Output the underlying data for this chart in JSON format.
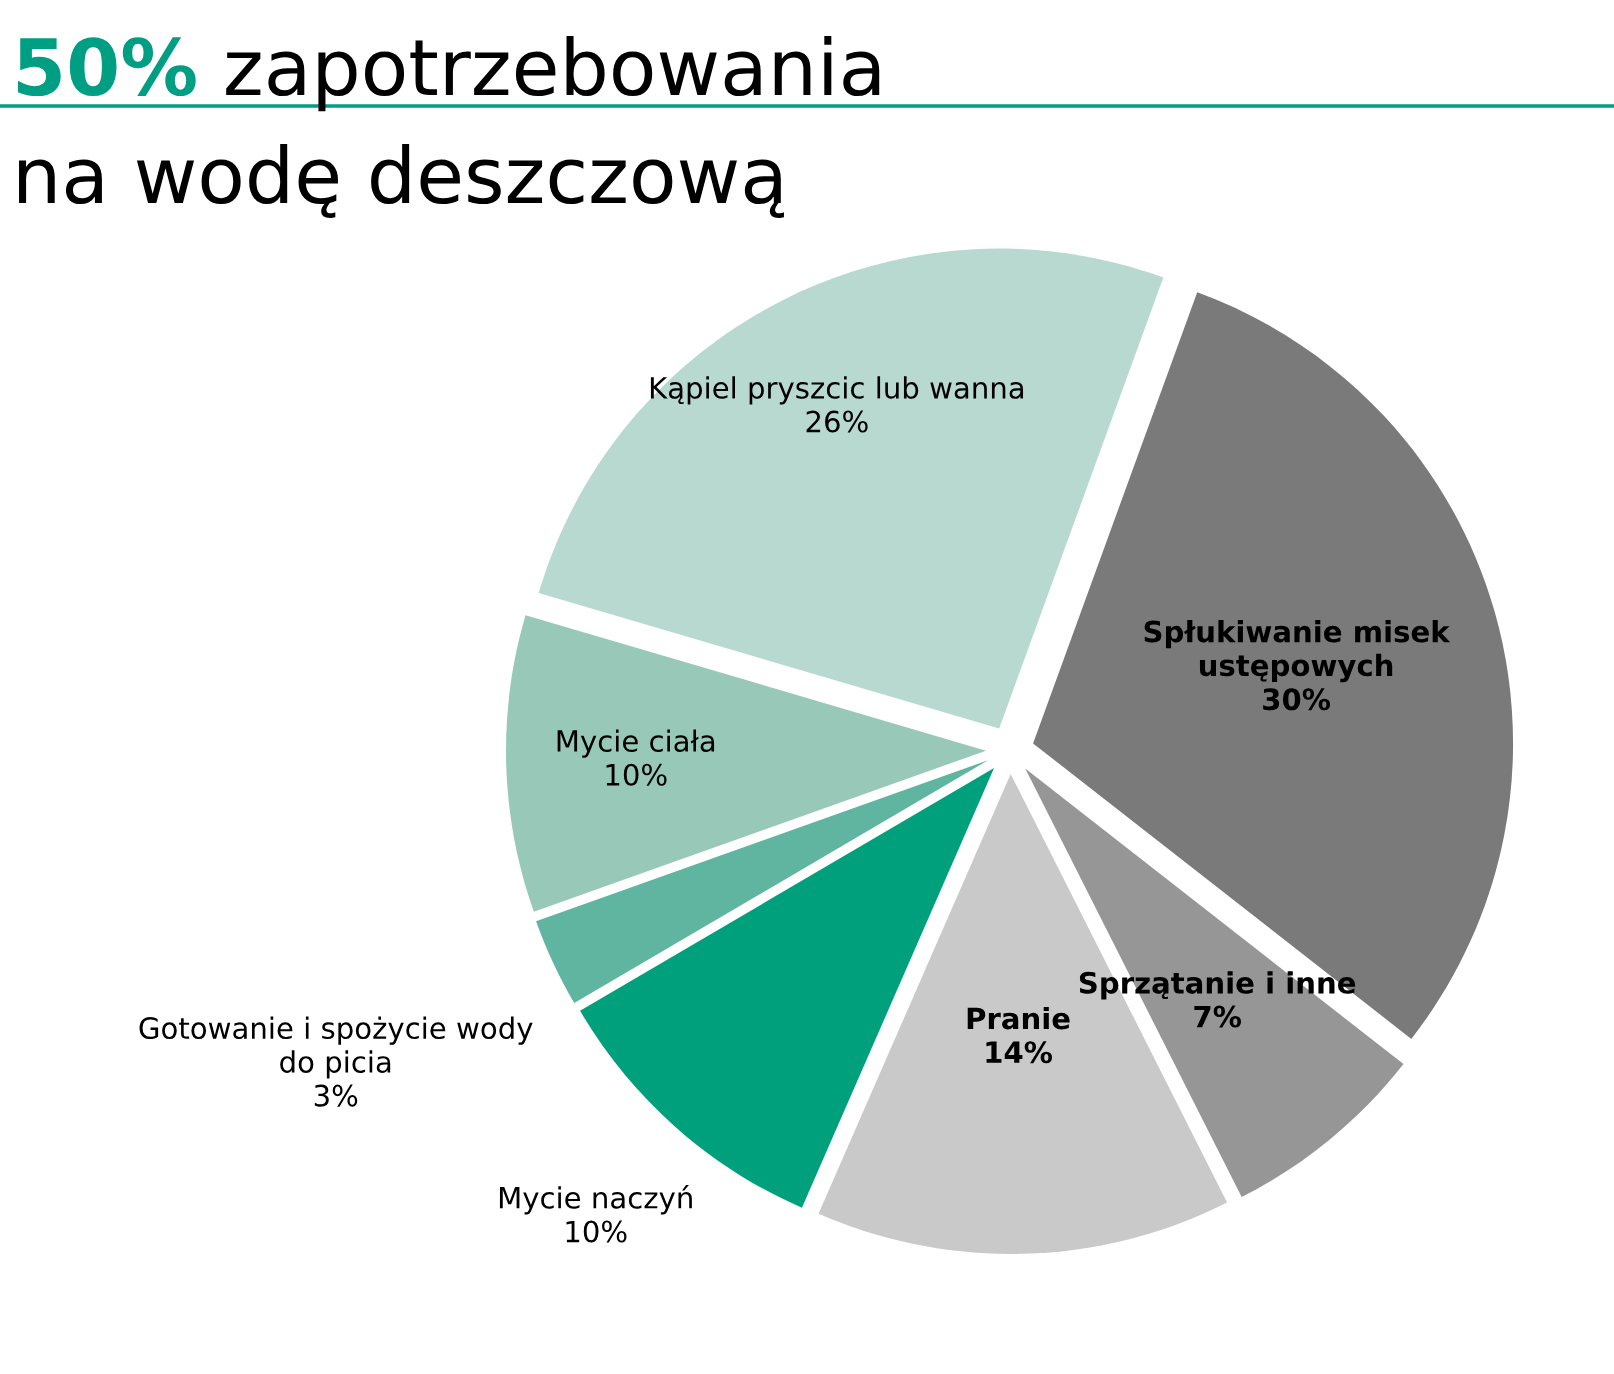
{
  "chart_data": {
    "type": "pie",
    "title": "50% zapotrzebowania\nna wodę deszczową",
    "categories": [
      "Spłukiwanie misek\nustępowych",
      "Sprzątanie i inne",
      "Pranie",
      "Mycie naczyń",
      "Gotowanie i spożycie wody\ndo picia",
      "Mycie ciała",
      "Kąpiel pryszcic lub wanna"
    ],
    "values": [
      30,
      7,
      14,
      10,
      3,
      10,
      26
    ],
    "value_labels": [
      "30%",
      "7%",
      "14%",
      "10%",
      "3%",
      "10%",
      "26%"
    ],
    "colors": [
      "#7a7a7a",
      "#969696",
      "#c9c9c9",
      "#00a07c",
      "#5fb5a0",
      "#98c9b8",
      "#b8d9cf"
    ]
  }
}
